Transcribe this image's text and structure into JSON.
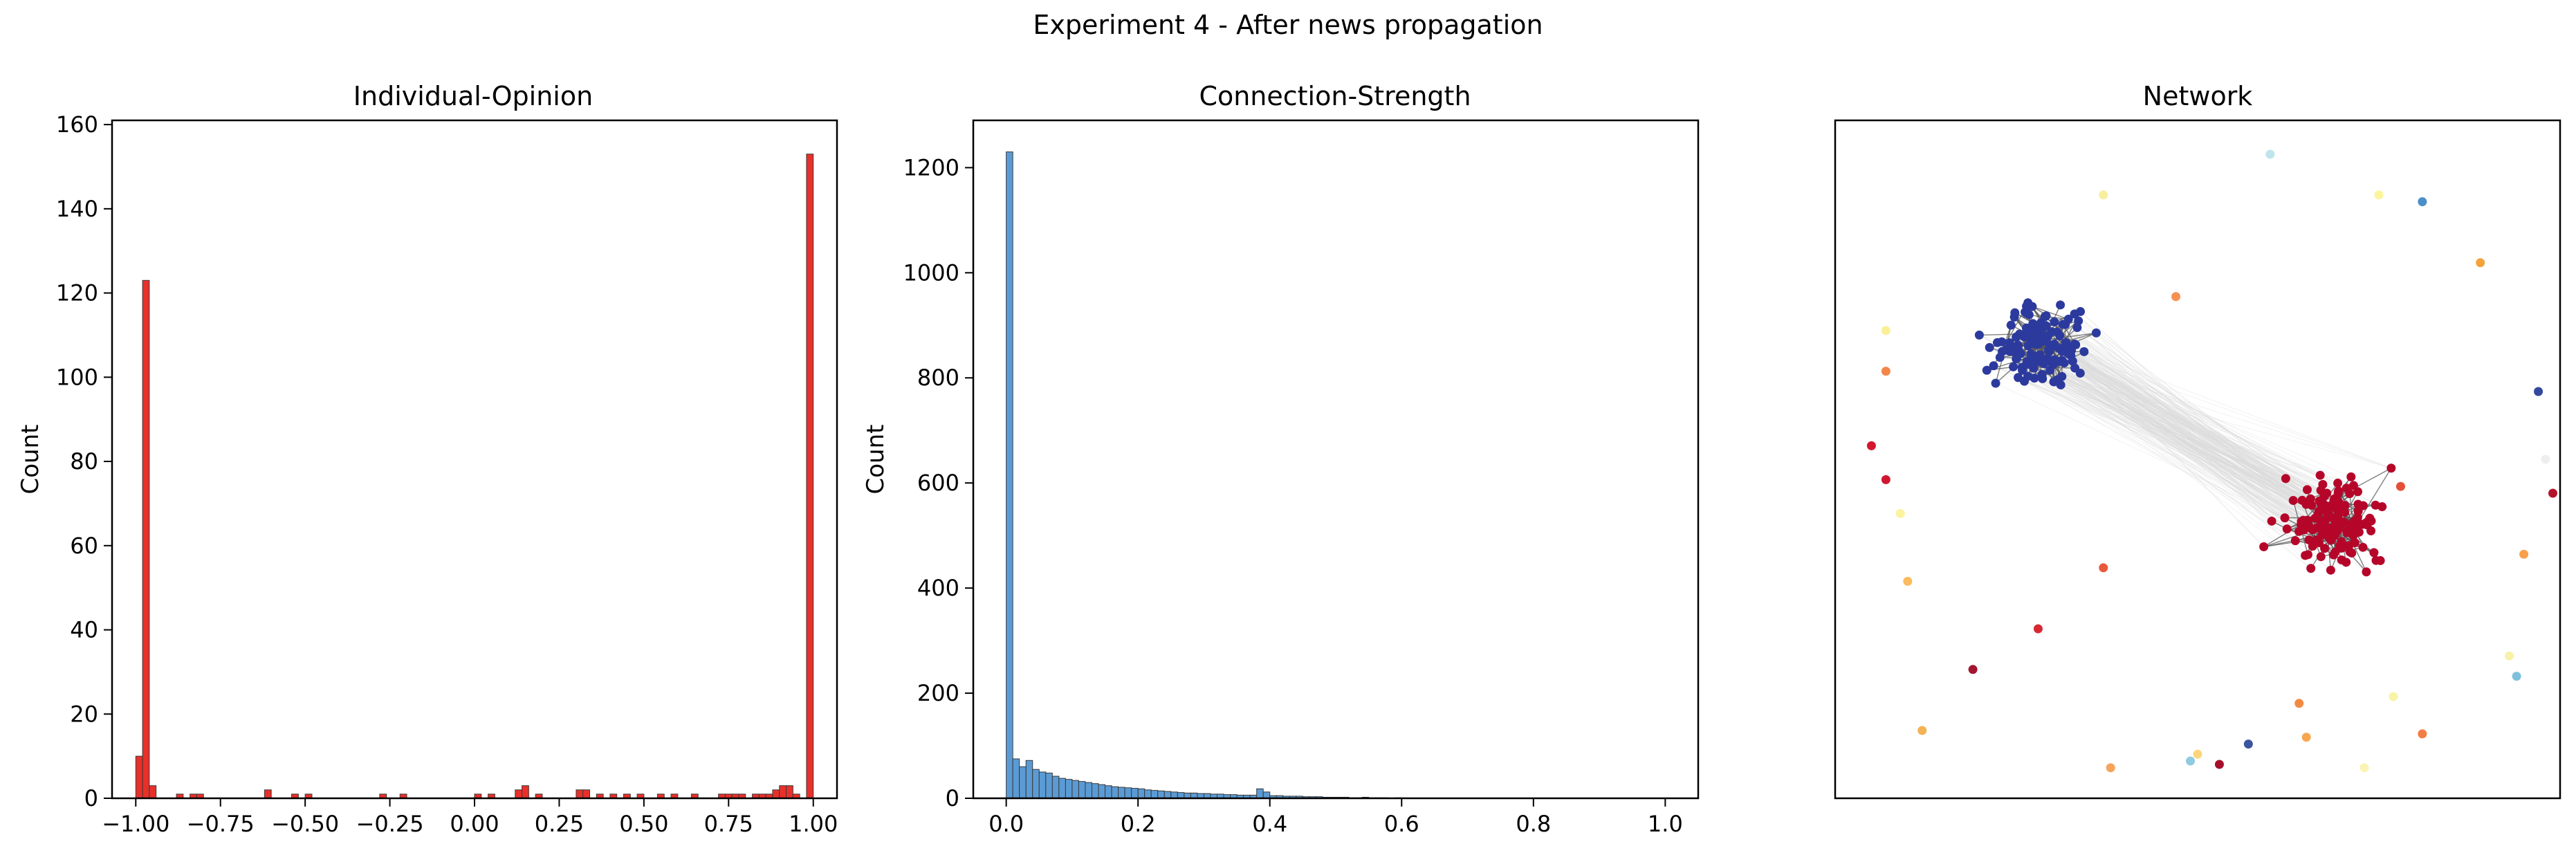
{
  "figure": {
    "title": "Experiment 4 - After news propagation"
  },
  "chart_data": [
    {
      "type": "bar",
      "title": "Individual-Opinion",
      "xlabel": "",
      "ylabel": "Count",
      "xlim": [
        -1.07,
        1.07
      ],
      "ylim": [
        0,
        161
      ],
      "xticks": [
        -1.0,
        -0.75,
        -0.5,
        -0.25,
        0.0,
        0.25,
        0.5,
        0.75,
        1.0
      ],
      "xtick_labels": [
        "−1.00",
        "−0.75",
        "−0.50",
        "−0.25",
        "0.00",
        "0.25",
        "0.50",
        "0.75",
        "1.00"
      ],
      "yticks": [
        0,
        20,
        40,
        60,
        80,
        100,
        120,
        140,
        160
      ],
      "ytick_labels": [
        "0",
        "20",
        "40",
        "60",
        "80",
        "100",
        "120",
        "140",
        "160"
      ],
      "bin_width": 0.02,
      "color": "#e8302a",
      "bins": [
        {
          "x": -0.99,
          "value": 10
        },
        {
          "x": -0.97,
          "value": 123
        },
        {
          "x": -0.95,
          "value": 3
        },
        {
          "x": -0.87,
          "value": 1
        },
        {
          "x": -0.83,
          "value": 1
        },
        {
          "x": -0.81,
          "value": 1
        },
        {
          "x": -0.61,
          "value": 2
        },
        {
          "x": -0.53,
          "value": 1
        },
        {
          "x": -0.49,
          "value": 1
        },
        {
          "x": -0.27,
          "value": 1
        },
        {
          "x": -0.21,
          "value": 1
        },
        {
          "x": 0.01,
          "value": 1
        },
        {
          "x": 0.05,
          "value": 1
        },
        {
          "x": 0.13,
          "value": 2
        },
        {
          "x": 0.15,
          "value": 3
        },
        {
          "x": 0.19,
          "value": 1
        },
        {
          "x": 0.31,
          "value": 2
        },
        {
          "x": 0.33,
          "value": 2
        },
        {
          "x": 0.37,
          "value": 1
        },
        {
          "x": 0.41,
          "value": 1
        },
        {
          "x": 0.45,
          "value": 1
        },
        {
          "x": 0.49,
          "value": 1
        },
        {
          "x": 0.55,
          "value": 1
        },
        {
          "x": 0.59,
          "value": 1
        },
        {
          "x": 0.65,
          "value": 1
        },
        {
          "x": 0.73,
          "value": 1
        },
        {
          "x": 0.75,
          "value": 1
        },
        {
          "x": 0.77,
          "value": 1
        },
        {
          "x": 0.79,
          "value": 1
        },
        {
          "x": 0.83,
          "value": 1
        },
        {
          "x": 0.85,
          "value": 1
        },
        {
          "x": 0.87,
          "value": 1
        },
        {
          "x": 0.89,
          "value": 2
        },
        {
          "x": 0.91,
          "value": 3
        },
        {
          "x": 0.93,
          "value": 3
        },
        {
          "x": 0.95,
          "value": 1
        },
        {
          "x": 0.99,
          "value": 153
        }
      ]
    },
    {
      "type": "bar",
      "title": "Connection-Strength",
      "xlabel": "",
      "ylabel": "Count",
      "xlim": [
        -0.05,
        1.05
      ],
      "ylim": [
        0,
        1290
      ],
      "xticks": [
        0.0,
        0.2,
        0.4,
        0.6,
        0.8,
        1.0
      ],
      "xtick_labels": [
        "0.0",
        "0.2",
        "0.4",
        "0.6",
        "0.8",
        "1.0"
      ],
      "yticks": [
        0,
        200,
        400,
        600,
        800,
        1000,
        1200
      ],
      "ytick_labels": [
        "0",
        "200",
        "400",
        "600",
        "800",
        "1000",
        "1200"
      ],
      "bin_width": 0.01,
      "color": "#5b9bd5",
      "values": [
        1230,
        75,
        60,
        72,
        55,
        50,
        48,
        42,
        38,
        36,
        34,
        32,
        30,
        28,
        26,
        24,
        22,
        21,
        20,
        19,
        18,
        16,
        15,
        14,
        13,
        12,
        11,
        10,
        10,
        9,
        9,
        8,
        8,
        7,
        7,
        6,
        6,
        6,
        18,
        12,
        5,
        5,
        4,
        4,
        4,
        3,
        3,
        3,
        2,
        2,
        2,
        2,
        1,
        1,
        2,
        1,
        1,
        1,
        0,
        1
      ]
    },
    {
      "type": "scatter",
      "title": "Network",
      "xlim": [
        0,
        1
      ],
      "ylim": [
        0,
        1
      ],
      "axes_visible": false,
      "colors": {
        "cluster_a": "#2c3a9e",
        "cluster_b": "#b5062a",
        "edge": "#555555",
        "faint_edge": "#d9d9d9"
      },
      "clusters": [
        {
          "name": "cluster_a",
          "center": [
            0.29,
            0.66
          ],
          "spread": [
            0.09,
            0.075
          ],
          "count": 130
        },
        {
          "name": "cluster_b",
          "center": [
            0.69,
            0.41
          ],
          "spread": [
            0.085,
            0.08
          ],
          "count": 150
        }
      ],
      "isolated_nodes": [
        {
          "x": 0.6,
          "y": 0.95,
          "color": "#bfe5ec"
        },
        {
          "x": 0.37,
          "y": 0.89,
          "color": "#f7efa0"
        },
        {
          "x": 0.75,
          "y": 0.89,
          "color": "#fbf59e"
        },
        {
          "x": 0.81,
          "y": 0.88,
          "color": "#4b8fc8"
        },
        {
          "x": 0.89,
          "y": 0.79,
          "color": "#f5a23b"
        },
        {
          "x": 0.47,
          "y": 0.74,
          "color": "#f79051"
        },
        {
          "x": 0.07,
          "y": 0.69,
          "color": "#f9ef97"
        },
        {
          "x": 0.07,
          "y": 0.63,
          "color": "#f4864a"
        },
        {
          "x": 0.97,
          "y": 0.6,
          "color": "#34489c"
        },
        {
          "x": 0.05,
          "y": 0.52,
          "color": "#d4172f"
        },
        {
          "x": 0.98,
          "y": 0.5,
          "color": "#eeeeee"
        },
        {
          "x": 0.07,
          "y": 0.47,
          "color": "#cf1830"
        },
        {
          "x": 0.99,
          "y": 0.45,
          "color": "#b3142b"
        },
        {
          "x": 0.09,
          "y": 0.42,
          "color": "#fbf3a0"
        },
        {
          "x": 0.78,
          "y": 0.46,
          "color": "#e45038"
        },
        {
          "x": 0.95,
          "y": 0.36,
          "color": "#f9a04c"
        },
        {
          "x": 0.1,
          "y": 0.32,
          "color": "#fbbb5f"
        },
        {
          "x": 0.28,
          "y": 0.25,
          "color": "#d62a33"
        },
        {
          "x": 0.37,
          "y": 0.34,
          "color": "#e95a3c"
        },
        {
          "x": 0.19,
          "y": 0.19,
          "color": "#a31530"
        },
        {
          "x": 0.93,
          "y": 0.21,
          "color": "#f7f2a8"
        },
        {
          "x": 0.94,
          "y": 0.18,
          "color": "#7fc1dd"
        },
        {
          "x": 0.77,
          "y": 0.15,
          "color": "#f9f3a8"
        },
        {
          "x": 0.81,
          "y": 0.095,
          "color": "#f47d45"
        },
        {
          "x": 0.64,
          "y": 0.14,
          "color": "#f38a44"
        },
        {
          "x": 0.65,
          "y": 0.09,
          "color": "#f7a64f"
        },
        {
          "x": 0.57,
          "y": 0.08,
          "color": "#3c55a0"
        },
        {
          "x": 0.49,
          "y": 0.055,
          "color": "#8fcbe1"
        },
        {
          "x": 0.5,
          "y": 0.065,
          "color": "#fbd67b"
        },
        {
          "x": 0.53,
          "y": 0.05,
          "color": "#a50f2b"
        },
        {
          "x": 0.38,
          "y": 0.045,
          "color": "#f6a35c"
        },
        {
          "x": 0.12,
          "y": 0.1,
          "color": "#f3b255"
        },
        {
          "x": 0.73,
          "y": 0.045,
          "color": "#fbf3b4"
        }
      ]
    }
  ]
}
